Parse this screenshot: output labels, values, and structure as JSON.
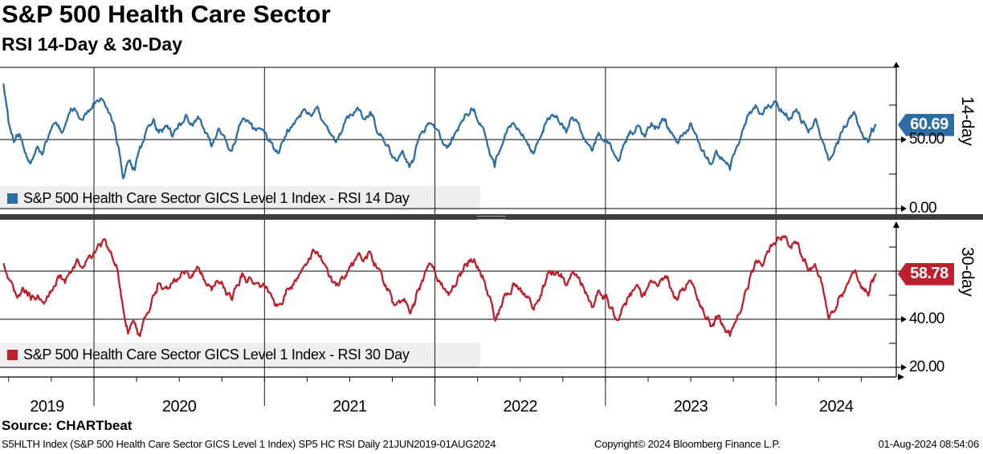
{
  "header": {
    "title": "S&P 500 Health Care Sector",
    "subtitle": "RSI 14-Day & 30-Day"
  },
  "legends": {
    "rsi14": "S&P 500 Health Care Sector GICS Level 1 Index - RSI 14 Day",
    "rsi30": "S&P 500 Health Care Sector GICS Level 1 Index - RSI 30 Day"
  },
  "badges": {
    "rsi14": "60.69",
    "rsi30": "58.78"
  },
  "axis_titles": {
    "rsi14": "14-day",
    "rsi30": "30-day"
  },
  "y_axis": {
    "rsi14_labels": [
      {
        "value": 50,
        "text": "50.00"
      },
      {
        "value": 0,
        "text": "0.00"
      }
    ],
    "rsi30_labels": [
      {
        "value": 40,
        "text": "40.00"
      },
      {
        "value": 20,
        "text": "20.00"
      }
    ]
  },
  "x_axis": {
    "years": [
      "2019",
      "2020",
      "2021",
      "2022",
      "2023",
      "2024"
    ]
  },
  "footer": {
    "source": "Source: CHARTbeat",
    "descriptor": "S5HLTH Index (S&P 500 Health Care Sector GICS Level 1 Index) SP5 HC RSI  Daily 21JUN2019-01AUG2024",
    "copyright": "Copyright© 2024 Bloomberg Finance L.P.",
    "timestamp": "01-Aug-2024 08:54:06"
  },
  "colors": {
    "rsi14": "#2e6da4",
    "rsi30": "#bd1f2d",
    "legend_bg": "#efefef",
    "separator": "#3d3d3d",
    "grid": "#000000"
  },
  "chart_data": {
    "type": "line",
    "title": "S&P 500 Health Care Sector - RSI 14-Day & 30-Day",
    "x_range": [
      "21JUN2019",
      "01AUG2024"
    ],
    "frequency": "Daily",
    "x_tick_years": [
      2020,
      2021,
      2022,
      2023,
      2024
    ],
    "panels": [
      {
        "name": "S&P 500 Health Care Sector GICS Level 1 Index - RSI 14 Day",
        "ylim": [
          0,
          102
        ],
        "gridlines": [
          50,
          0
        ],
        "labeled_ticks": [
          50,
          0
        ],
        "minor_ticks": [
          75,
          25
        ],
        "last_value": 60.69,
        "points": [
          [
            2019.47,
            90
          ],
          [
            2019.5,
            62
          ],
          [
            2019.53,
            48
          ],
          [
            2019.56,
            54
          ],
          [
            2019.6,
            40
          ],
          [
            2019.63,
            33
          ],
          [
            2019.67,
            45
          ],
          [
            2019.7,
            40
          ],
          [
            2019.74,
            55
          ],
          [
            2019.78,
            62
          ],
          [
            2019.81,
            55
          ],
          [
            2019.85,
            68
          ],
          [
            2019.88,
            72
          ],
          [
            2019.92,
            65
          ],
          [
            2019.96,
            70
          ],
          [
            2020.0,
            77
          ],
          [
            2020.04,
            80
          ],
          [
            2020.08,
            72
          ],
          [
            2020.12,
            60
          ],
          [
            2020.15,
            40
          ],
          [
            2020.17,
            22
          ],
          [
            2020.21,
            35
          ],
          [
            2020.24,
            28
          ],
          [
            2020.27,
            45
          ],
          [
            2020.31,
            58
          ],
          [
            2020.35,
            65
          ],
          [
            2020.38,
            55
          ],
          [
            2020.42,
            60
          ],
          [
            2020.46,
            52
          ],
          [
            2020.5,
            62
          ],
          [
            2020.54,
            68
          ],
          [
            2020.58,
            60
          ],
          [
            2020.62,
            65
          ],
          [
            2020.65,
            55
          ],
          [
            2020.69,
            45
          ],
          [
            2020.73,
            58
          ],
          [
            2020.77,
            50
          ],
          [
            2020.81,
            42
          ],
          [
            2020.85,
            60
          ],
          [
            2020.88,
            65
          ],
          [
            2020.92,
            62
          ],
          [
            2020.96,
            58
          ],
          [
            2021.0,
            55
          ],
          [
            2021.04,
            48
          ],
          [
            2021.08,
            40
          ],
          [
            2021.12,
            52
          ],
          [
            2021.15,
            58
          ],
          [
            2021.19,
            65
          ],
          [
            2021.23,
            72
          ],
          [
            2021.27,
            68
          ],
          [
            2021.31,
            74
          ],
          [
            2021.35,
            62
          ],
          [
            2021.38,
            55
          ],
          [
            2021.42,
            48
          ],
          [
            2021.46,
            58
          ],
          [
            2021.5,
            68
          ],
          [
            2021.54,
            72
          ],
          [
            2021.58,
            65
          ],
          [
            2021.62,
            70
          ],
          [
            2021.65,
            60
          ],
          [
            2021.69,
            52
          ],
          [
            2021.73,
            45
          ],
          [
            2021.77,
            35
          ],
          [
            2021.81,
            42
          ],
          [
            2021.85,
            30
          ],
          [
            2021.88,
            38
          ],
          [
            2021.92,
            55
          ],
          [
            2021.96,
            62
          ],
          [
            2022.0,
            58
          ],
          [
            2022.04,
            50
          ],
          [
            2022.08,
            45
          ],
          [
            2022.12,
            55
          ],
          [
            2022.15,
            62
          ],
          [
            2022.19,
            68
          ],
          [
            2022.23,
            72
          ],
          [
            2022.27,
            60
          ],
          [
            2022.31,
            45
          ],
          [
            2022.35,
            30
          ],
          [
            2022.38,
            42
          ],
          [
            2022.42,
            55
          ],
          [
            2022.46,
            62
          ],
          [
            2022.5,
            55
          ],
          [
            2022.54,
            48
          ],
          [
            2022.58,
            40
          ],
          [
            2022.62,
            52
          ],
          [
            2022.65,
            62
          ],
          [
            2022.69,
            68
          ],
          [
            2022.73,
            62
          ],
          [
            2022.77,
            55
          ],
          [
            2022.81,
            65
          ],
          [
            2022.85,
            58
          ],
          [
            2022.88,
            50
          ],
          [
            2022.92,
            42
          ],
          [
            2022.96,
            55
          ],
          [
            2023.0,
            50
          ],
          [
            2023.04,
            42
          ],
          [
            2023.08,
            35
          ],
          [
            2023.12,
            48
          ],
          [
            2023.15,
            55
          ],
          [
            2023.19,
            60
          ],
          [
            2023.23,
            52
          ],
          [
            2023.27,
            62
          ],
          [
            2023.31,
            58
          ],
          [
            2023.35,
            65
          ],
          [
            2023.38,
            55
          ],
          [
            2023.42,
            48
          ],
          [
            2023.46,
            55
          ],
          [
            2023.5,
            62
          ],
          [
            2023.54,
            50
          ],
          [
            2023.58,
            40
          ],
          [
            2023.62,
            32
          ],
          [
            2023.65,
            42
          ],
          [
            2023.69,
            35
          ],
          [
            2023.73,
            28
          ],
          [
            2023.77,
            45
          ],
          [
            2023.81,
            58
          ],
          [
            2023.85,
            70
          ],
          [
            2023.88,
            75
          ],
          [
            2023.92,
            68
          ],
          [
            2023.96,
            74
          ],
          [
            2024.0,
            78
          ],
          [
            2024.04,
            70
          ],
          [
            2024.08,
            65
          ],
          [
            2024.12,
            72
          ],
          [
            2024.15,
            62
          ],
          [
            2024.19,
            55
          ],
          [
            2024.23,
            65
          ],
          [
            2024.27,
            50
          ],
          [
            2024.31,
            35
          ],
          [
            2024.35,
            45
          ],
          [
            2024.38,
            55
          ],
          [
            2024.42,
            62
          ],
          [
            2024.46,
            70
          ],
          [
            2024.5,
            55
          ],
          [
            2024.54,
            48
          ],
          [
            2024.56,
            58
          ],
          [
            2024.585,
            60.69
          ]
        ]
      },
      {
        "name": "S&P 500 Health Care Sector GICS Level 1 Index - RSI 30 Day",
        "ylim": [
          16,
          82
        ],
        "gridlines": [
          60,
          40,
          20
        ],
        "labeled_ticks": [
          40,
          20
        ],
        "minor_ticks": [
          70,
          50,
          30
        ],
        "last_value": 58.78,
        "points": [
          [
            2019.47,
            63
          ],
          [
            2019.52,
            55
          ],
          [
            2019.56,
            50
          ],
          [
            2019.6,
            52
          ],
          [
            2019.63,
            48
          ],
          [
            2019.67,
            50
          ],
          [
            2019.71,
            47
          ],
          [
            2019.75,
            52
          ],
          [
            2019.79,
            58
          ],
          [
            2019.83,
            55
          ],
          [
            2019.87,
            60
          ],
          [
            2019.9,
            65
          ],
          [
            2019.94,
            62
          ],
          [
            2019.98,
            66
          ],
          [
            2020.02,
            70
          ],
          [
            2020.06,
            73
          ],
          [
            2020.1,
            68
          ],
          [
            2020.14,
            60
          ],
          [
            2020.17,
            45
          ],
          [
            2020.2,
            34
          ],
          [
            2020.24,
            38
          ],
          [
            2020.27,
            33
          ],
          [
            2020.31,
            42
          ],
          [
            2020.35,
            50
          ],
          [
            2020.38,
            55
          ],
          [
            2020.42,
            53
          ],
          [
            2020.46,
            55
          ],
          [
            2020.5,
            57
          ],
          [
            2020.54,
            60
          ],
          [
            2020.58,
            58
          ],
          [
            2020.62,
            60
          ],
          [
            2020.65,
            56
          ],
          [
            2020.69,
            52
          ],
          [
            2020.73,
            55
          ],
          [
            2020.77,
            52
          ],
          [
            2020.81,
            48
          ],
          [
            2020.85,
            54
          ],
          [
            2020.88,
            58
          ],
          [
            2020.92,
            57
          ],
          [
            2020.96,
            55
          ],
          [
            2021.0,
            54
          ],
          [
            2021.04,
            50
          ],
          [
            2021.08,
            46
          ],
          [
            2021.12,
            50
          ],
          [
            2021.15,
            53
          ],
          [
            2021.19,
            57
          ],
          [
            2021.23,
            62
          ],
          [
            2021.27,
            65
          ],
          [
            2021.31,
            68
          ],
          [
            2021.35,
            63
          ],
          [
            2021.38,
            58
          ],
          [
            2021.42,
            54
          ],
          [
            2021.46,
            57
          ],
          [
            2021.5,
            62
          ],
          [
            2021.54,
            66
          ],
          [
            2021.58,
            64
          ],
          [
            2021.62,
            68
          ],
          [
            2021.65,
            63
          ],
          [
            2021.69,
            58
          ],
          [
            2021.73,
            52
          ],
          [
            2021.77,
            46
          ],
          [
            2021.81,
            48
          ],
          [
            2021.85,
            43
          ],
          [
            2021.88,
            46
          ],
          [
            2021.92,
            55
          ],
          [
            2021.96,
            62
          ],
          [
            2022.0,
            60
          ],
          [
            2022.04,
            55
          ],
          [
            2022.08,
            50
          ],
          [
            2022.12,
            54
          ],
          [
            2022.15,
            58
          ],
          [
            2022.19,
            62
          ],
          [
            2022.23,
            65
          ],
          [
            2022.27,
            58
          ],
          [
            2022.31,
            50
          ],
          [
            2022.35,
            40
          ],
          [
            2022.38,
            44
          ],
          [
            2022.42,
            50
          ],
          [
            2022.46,
            55
          ],
          [
            2022.5,
            53
          ],
          [
            2022.54,
            49
          ],
          [
            2022.58,
            44
          ],
          [
            2022.62,
            50
          ],
          [
            2022.65,
            56
          ],
          [
            2022.69,
            60
          ],
          [
            2022.73,
            58
          ],
          [
            2022.77,
            54
          ],
          [
            2022.81,
            60
          ],
          [
            2022.85,
            56
          ],
          [
            2022.88,
            51
          ],
          [
            2022.92,
            45
          ],
          [
            2022.96,
            52
          ],
          [
            2023.0,
            50
          ],
          [
            2023.04,
            45
          ],
          [
            2023.08,
            40
          ],
          [
            2023.12,
            46
          ],
          [
            2023.15,
            50
          ],
          [
            2023.19,
            54
          ],
          [
            2023.23,
            50
          ],
          [
            2023.27,
            56
          ],
          [
            2023.31,
            54
          ],
          [
            2023.35,
            58
          ],
          [
            2023.38,
            53
          ],
          [
            2023.42,
            48
          ],
          [
            2023.46,
            52
          ],
          [
            2023.5,
            56
          ],
          [
            2023.54,
            48
          ],
          [
            2023.58,
            42
          ],
          [
            2023.62,
            37
          ],
          [
            2023.65,
            41
          ],
          [
            2023.69,
            37
          ],
          [
            2023.73,
            33
          ],
          [
            2023.77,
            40
          ],
          [
            2023.81,
            48
          ],
          [
            2023.85,
            58
          ],
          [
            2023.88,
            64
          ],
          [
            2023.92,
            62
          ],
          [
            2023.96,
            68
          ],
          [
            2024.0,
            72
          ],
          [
            2024.04,
            74
          ],
          [
            2024.08,
            70
          ],
          [
            2024.12,
            72
          ],
          [
            2024.15,
            66
          ],
          [
            2024.19,
            60
          ],
          [
            2024.23,
            63
          ],
          [
            2024.27,
            55
          ],
          [
            2024.31,
            40
          ],
          [
            2024.35,
            44
          ],
          [
            2024.38,
            50
          ],
          [
            2024.42,
            55
          ],
          [
            2024.46,
            60
          ],
          [
            2024.5,
            53
          ],
          [
            2024.54,
            50
          ],
          [
            2024.56,
            56
          ],
          [
            2024.585,
            58.78
          ]
        ]
      }
    ]
  }
}
